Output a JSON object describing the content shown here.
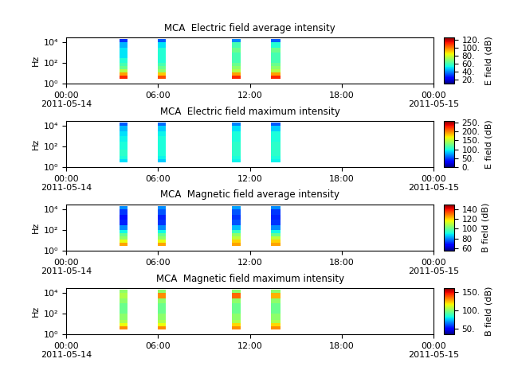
{
  "chart_data": [
    {
      "type": "heatmap",
      "title": "MCA  Electric field average intensity",
      "y_label": "Hz",
      "log": "y",
      "xlim": [
        0,
        24
      ],
      "xticks": [
        {
          "value": 0,
          "label": "00:00\n2011-05-14"
        },
        {
          "value": 6,
          "label": "06:00"
        },
        {
          "value": 12,
          "label": "12:00"
        },
        {
          "value": 18,
          "label": "18:00"
        },
        {
          "value": 24,
          "label": "00:00\n2011-05-15"
        }
      ],
      "ylim": [
        1,
        30000
      ],
      "yticks": [
        {
          "value": 1,
          "label": "10⁰"
        },
        {
          "value": 100,
          "label": "10²"
        },
        {
          "value": 10000,
          "label": "10⁴"
        }
      ],
      "time_edges": [
        3.5,
        4.0,
        6.0,
        6.5,
        10.8,
        11.4,
        13.4,
        14.0
      ],
      "freq_edges": [
        3,
        6,
        12,
        25,
        50,
        100,
        300,
        1000,
        3000,
        10000,
        20000
      ],
      "cells": [
        [
          110,
          null,
          105,
          null,
          110,
          null,
          110
        ],
        [
          95,
          null,
          90,
          null,
          95,
          null,
          95
        ],
        [
          75,
          null,
          70,
          null,
          75,
          null,
          75
        ],
        [
          65,
          null,
          65,
          null,
          70,
          null,
          70
        ],
        [
          60,
          null,
          60,
          null,
          65,
          null,
          65
        ],
        [
          55,
          null,
          55,
          null,
          60,
          null,
          60
        ],
        [
          50,
          null,
          55,
          null,
          60,
          null,
          60
        ],
        [
          50,
          null,
          55,
          null,
          65,
          null,
          65
        ],
        [
          45,
          null,
          50,
          null,
          60,
          null,
          55
        ],
        [
          30,
          null,
          35,
          null,
          40,
          null,
          35
        ]
      ],
      "colorbar_label": "E field (dB)",
      "colorbar_range": [
        10,
        125
      ],
      "colorbar_ticks": [
        {
          "value": 20,
          "label": "20."
        },
        {
          "value": 40,
          "label": "40."
        },
        {
          "value": 60,
          "label": "60."
        },
        {
          "value": 80,
          "label": "80."
        },
        {
          "value": 100,
          "label": "100."
        },
        {
          "value": 120,
          "label": "120."
        }
      ]
    },
    {
      "type": "heatmap",
      "title": "MCA  Electric field maximum intensity",
      "y_label": "Hz",
      "log": "y",
      "xlim": [
        0,
        24
      ],
      "xticks": [
        {
          "value": 0,
          "label": "00:00\n2011-05-14"
        },
        {
          "value": 6,
          "label": "06:00"
        },
        {
          "value": 12,
          "label": "12:00"
        },
        {
          "value": 18,
          "label": "18:00"
        },
        {
          "value": 24,
          "label": "00:00\n2011-05-15"
        }
      ],
      "ylim": [
        1,
        30000
      ],
      "yticks": [
        {
          "value": 1,
          "label": "10⁰"
        },
        {
          "value": 100,
          "label": "10²"
        },
        {
          "value": 10000,
          "label": "10⁴"
        }
      ],
      "time_edges": [
        3.5,
        4.0,
        6.0,
        6.5,
        10.8,
        11.4,
        13.4,
        14.0
      ],
      "freq_edges": [
        3,
        6,
        12,
        25,
        50,
        100,
        300,
        1000,
        3000,
        10000,
        20000
      ],
      "cells": [
        [
          90,
          null,
          85,
          null,
          95,
          null,
          95
        ],
        [
          100,
          null,
          95,
          null,
          100,
          null,
          100
        ],
        [
          105,
          null,
          100,
          null,
          105,
          null,
          105
        ],
        [
          105,
          null,
          100,
          null,
          105,
          null,
          105
        ],
        [
          100,
          null,
          100,
          null,
          105,
          null,
          105
        ],
        [
          100,
          null,
          100,
          null,
          105,
          null,
          105
        ],
        [
          95,
          null,
          100,
          null,
          100,
          null,
          100
        ],
        [
          90,
          null,
          95,
          null,
          100,
          null,
          100
        ],
        [
          80,
          null,
          85,
          null,
          90,
          null,
          85
        ],
        [
          55,
          null,
          60,
          null,
          65,
          null,
          55
        ]
      ],
      "colorbar_label": "E field (dB)",
      "colorbar_range": [
        0,
        260
      ],
      "colorbar_ticks": [
        {
          "value": 0,
          "label": "0."
        },
        {
          "value": 50,
          "label": "50."
        },
        {
          "value": 100,
          "label": "100."
        },
        {
          "value": 150,
          "label": "150."
        },
        {
          "value": 200,
          "label": "200."
        },
        {
          "value": 250,
          "label": "250."
        }
      ]
    },
    {
      "type": "heatmap",
      "title": "MCA  Magnetic field average intensity",
      "y_label": "Hz",
      "log": "y",
      "xlim": [
        0,
        24
      ],
      "xticks": [
        {
          "value": 0,
          "label": "00:00\n2011-05-14"
        },
        {
          "value": 6,
          "label": "06:00"
        },
        {
          "value": 12,
          "label": "12:00"
        },
        {
          "value": 18,
          "label": "18:00"
        },
        {
          "value": 24,
          "label": "00:00\n2011-05-15"
        }
      ],
      "ylim": [
        1,
        30000
      ],
      "yticks": [
        {
          "value": 1,
          "label": "10⁰"
        },
        {
          "value": 100,
          "label": "10²"
        },
        {
          "value": 10000,
          "label": "10⁴"
        }
      ],
      "time_edges": [
        3.5,
        4.0,
        6.0,
        6.5,
        10.8,
        11.4,
        13.4,
        14.0
      ],
      "freq_edges": [
        3,
        6,
        12,
        25,
        50,
        100,
        300,
        1000,
        3000,
        10000,
        20000
      ],
      "cells": [
        [
          125,
          null,
          125,
          null,
          125,
          null,
          125
        ],
        [
          115,
          null,
          115,
          null,
          120,
          null,
          120
        ],
        [
          105,
          null,
          105,
          null,
          110,
          null,
          110
        ],
        [
          100,
          null,
          100,
          null,
          105,
          null,
          100
        ],
        [
          90,
          null,
          90,
          null,
          95,
          null,
          90
        ],
        [
          80,
          null,
          80,
          null,
          85,
          null,
          80
        ],
        [
          70,
          null,
          72,
          null,
          75,
          null,
          72
        ],
        [
          68,
          null,
          70,
          null,
          72,
          null,
          70
        ],
        [
          72,
          null,
          75,
          null,
          75,
          null,
          72
        ],
        [
          80,
          null,
          80,
          null,
          82,
          null,
          80
        ]
      ],
      "colorbar_label": "B field (dB)",
      "colorbar_range": [
        55,
        150
      ],
      "colorbar_ticks": [
        60,
        80,
        100,
        120,
        140
      ]
    },
    {
      "type": "heatmap",
      "title": "MCA  Magnetic field maximum intensity",
      "y_label": "Hz",
      "log": "y",
      "xlim": [
        0,
        24
      ],
      "xticks": [
        {
          "value": 0,
          "label": "00:00\n2011-05-14"
        },
        {
          "value": 6,
          "label": "06:00"
        },
        {
          "value": 12,
          "label": "12:00"
        },
        {
          "value": 18,
          "label": "18:00"
        },
        {
          "value": 24,
          "label": "00:00\n2011-05-15"
        }
      ],
      "ylim": [
        1,
        30000
      ],
      "yticks": [
        {
          "value": 1,
          "label": "10⁰"
        },
        {
          "value": 100,
          "label": "10²"
        },
        {
          "value": 10000,
          "label": "10⁴"
        }
      ],
      "time_edges": [
        3.5,
        4.0,
        6.0,
        6.5,
        10.8,
        11.4,
        13.4,
        14.0
      ],
      "freq_edges": [
        3,
        6,
        12,
        25,
        50,
        100,
        300,
        1000,
        3000,
        10000,
        20000
      ],
      "cells": [
        [
          130,
          null,
          130,
          null,
          130,
          null,
          130
        ],
        [
          115,
          null,
          115,
          null,
          120,
          null,
          120
        ],
        [
          105,
          null,
          105,
          null,
          105,
          null,
          105
        ],
        [
          100,
          null,
          100,
          null,
          100,
          null,
          100
        ],
        [
          100,
          null,
          100,
          null,
          100,
          null,
          100
        ],
        [
          95,
          null,
          95,
          null,
          95,
          null,
          95
        ],
        [
          95,
          null,
          95,
          null,
          95,
          null,
          95
        ],
        [
          100,
          null,
          100,
          null,
          100,
          null,
          100
        ],
        [
          105,
          null,
          130,
          null,
          135,
          null,
          125
        ],
        [
          100,
          null,
          100,
          null,
          100,
          null,
          100
        ]
      ],
      "colorbar_label": "B field (dB)",
      "colorbar_range": [
        35,
        160
      ],
      "colorbar_ticks": [
        {
          "value": 50,
          "label": "50."
        },
        {
          "value": 100,
          "label": "100."
        },
        {
          "value": 150,
          "label": "150."
        }
      ]
    }
  ]
}
